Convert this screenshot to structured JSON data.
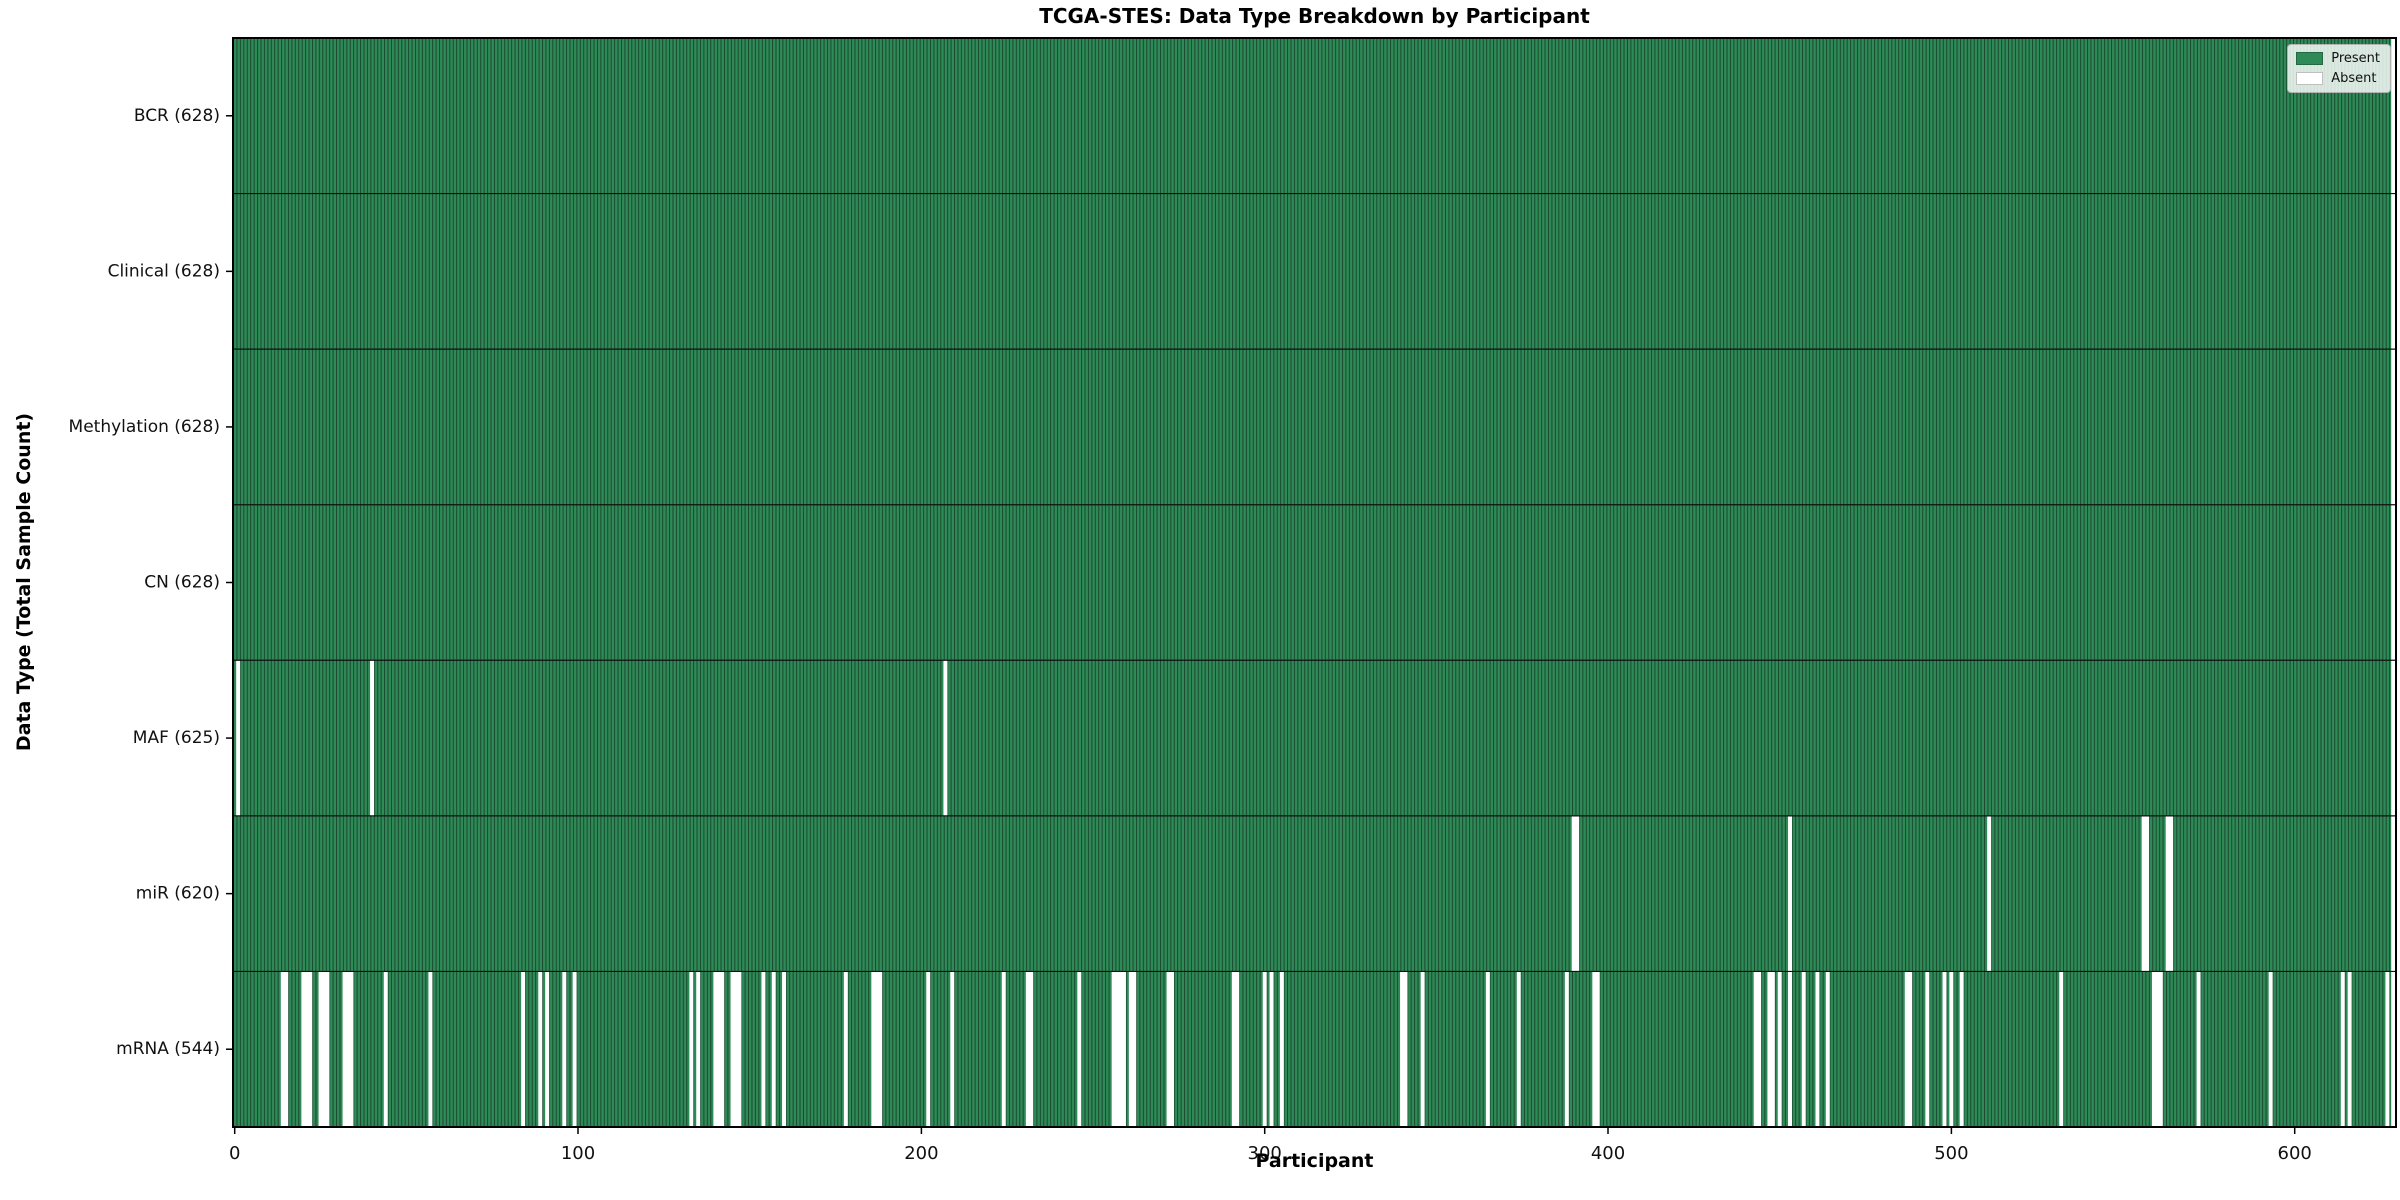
{
  "chart_data": {
    "type": "heatmap",
    "title": "TCGA-STES: Data Type Breakdown by Participant",
    "x_axis": {
      "label": "Participant",
      "ticks": [
        0,
        100,
        200,
        300,
        400,
        500,
        600
      ],
      "range": [
        0,
        628
      ]
    },
    "y_axis": {
      "label": "Data Type (Total Sample Count)"
    },
    "n_participants": 628,
    "legend": [
      {
        "label": "Present",
        "color": "#2e8b57"
      },
      {
        "label": "Absent",
        "color": "#ffffff"
      }
    ],
    "colors": {
      "present": "#2e8b57",
      "absent": "#ffffff",
      "bar_edge": "#1b4a30",
      "row_separator": "#111111",
      "spine": "#000000",
      "background": "#ffffff",
      "tick_text": "#111111"
    },
    "rows": [
      {
        "label": "BCR (628)",
        "name": "BCR",
        "present_count": 628,
        "absent_participants": []
      },
      {
        "label": "Clinical (628)",
        "name": "Clinical",
        "present_count": 628,
        "absent_participants": []
      },
      {
        "label": "Methylation (628)",
        "name": "Methylation",
        "present_count": 628,
        "absent_participants": []
      },
      {
        "label": "CN (628)",
        "name": "CN",
        "present_count": 628,
        "absent_participants": []
      },
      {
        "label": "MAF (625)",
        "name": "MAF",
        "present_count": 625,
        "absent_participants": [
          1,
          40,
          207
        ]
      },
      {
        "label": "miR (620)",
        "name": "miR",
        "present_count": 620,
        "absent_participants": [
          390,
          391,
          453,
          511,
          556,
          557,
          563,
          564
        ]
      },
      {
        "label": "mRNA (544)",
        "name": "mRNA",
        "present_count": 544,
        "absent_participants": [
          14,
          15,
          20,
          21,
          22,
          25,
          26,
          27,
          32,
          33,
          34,
          44,
          57,
          84,
          89,
          91,
          96,
          99,
          133,
          135,
          140,
          141,
          142,
          145,
          146,
          147,
          154,
          157,
          160,
          178,
          186,
          187,
          188,
          202,
          209,
          224,
          231,
          232,
          246,
          256,
          257,
          258,
          259,
          261,
          262,
          272,
          273,
          291,
          292,
          300,
          302,
          305,
          340,
          341,
          346,
          365,
          374,
          388,
          396,
          397,
          443,
          444,
          447,
          448,
          450,
          453,
          457,
          461,
          464,
          487,
          488,
          493,
          498,
          500,
          503,
          532,
          559,
          560,
          561,
          572,
          593,
          614,
          616,
          627
        ]
      }
    ]
  }
}
